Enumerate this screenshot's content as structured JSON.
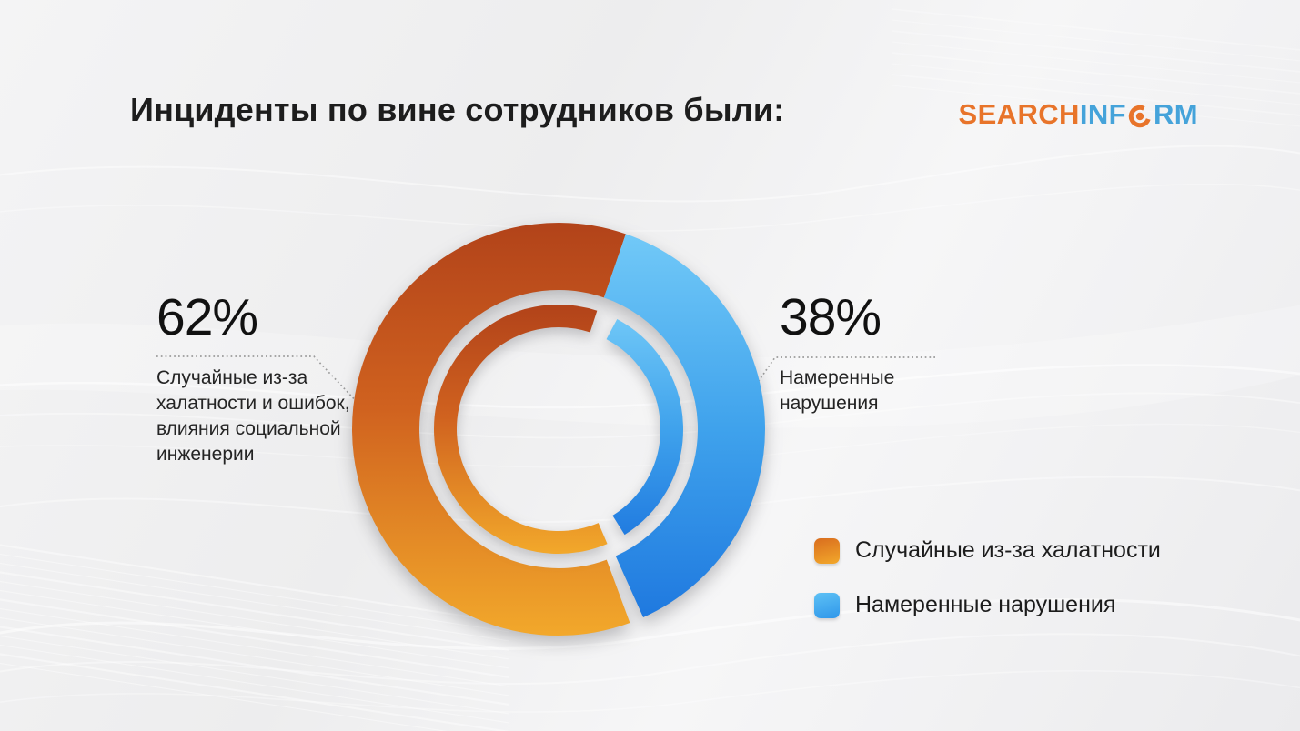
{
  "title": "Инциденты по вине сотрудников были:",
  "logo": {
    "part_search": "SEARCH",
    "part_inf": "INF",
    "part_rm": "RM",
    "orange": "#e8742a",
    "blue": "#45a3da"
  },
  "callouts": {
    "left": {
      "value": "62%",
      "label": "Случайные из-за\nхалатности и ошибок,\nвлияния социальной\nинженерии"
    },
    "right": {
      "value": "38%",
      "label": "Намеренные\nнарушения"
    }
  },
  "legend": [
    {
      "label": "Случайные из-за халатности",
      "swatch": [
        "#d96d1e",
        "#f2a82b"
      ]
    },
    {
      "label": "Намеренные нарушения",
      "swatch": [
        "#5ec1f5",
        "#2f97ea"
      ]
    }
  ],
  "chart_data": {
    "type": "pie",
    "donut": true,
    "title": "Инциденты по вине сотрудников были:",
    "categories": [
      "Случайные из-за халатности и ошибок, влияния социальной инженерии",
      "Намеренные нарушения"
    ],
    "values": [
      62,
      38
    ],
    "unit": "%",
    "rotation_deg": 19,
    "legend_position": "bottom-right",
    "colors": {
      "accidental": [
        "#b2431a",
        "#d0621f",
        "#f2a82b"
      ],
      "intentional": [
        "#74cbf8",
        "#3fa2ec",
        "#1c75de"
      ]
    }
  }
}
